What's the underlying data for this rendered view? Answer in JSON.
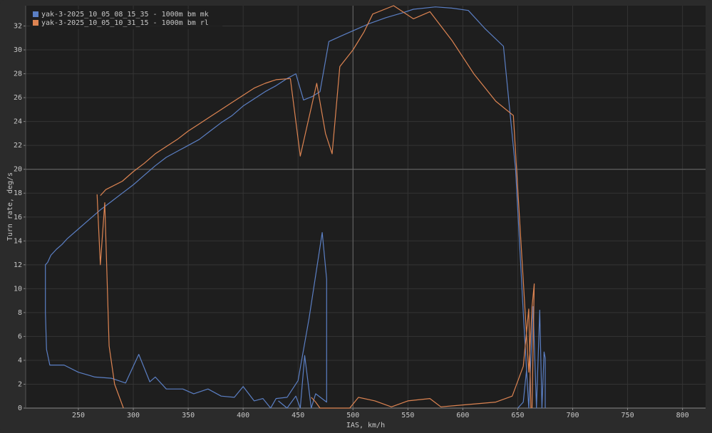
{
  "chart_data": {
    "type": "line",
    "xlabel": "IAS, km/h",
    "ylabel": "Turn rate, deg/s",
    "xlim": [
      202,
      821
    ],
    "ylim": [
      0,
      33.7
    ],
    "xticks": [
      250,
      300,
      350,
      400,
      450,
      500,
      550,
      600,
      650,
      700,
      750,
      800
    ],
    "yticks": [
      0,
      2,
      4,
      6,
      8,
      10,
      12,
      14,
      16,
      18,
      20,
      22,
      24,
      26,
      28,
      30,
      32
    ],
    "grid": true,
    "legend": "top-left",
    "crosshair": {
      "x": 500,
      "y": 20
    },
    "series": [
      {
        "name": "yak-3-2025_10_05_08_15_35 - 1000m bm mk",
        "color": "#5b7fc4",
        "x": [
          221,
          220,
          220,
          222,
          225,
          230,
          235,
          240,
          250,
          260,
          270,
          280,
          290,
          300,
          310,
          320,
          330,
          340,
          350,
          360,
          370,
          380,
          390,
          400,
          410,
          420,
          430,
          440,
          448,
          455,
          463,
          470,
          478,
          490,
          500,
          515,
          530,
          545,
          555,
          575,
          590,
          605,
          620,
          637,
          648,
          655,
          660,
          null,
          221,
          224,
          237,
          250,
          265,
          280,
          293,
          305,
          315,
          320,
          330,
          345,
          355,
          368,
          380,
          392,
          400,
          410,
          418,
          425,
          430,
          440,
          450,
          460,
          472,
          476,
          476,
          466,
          462,
          456,
          452,
          448,
          440,
          432,
          null,
          650,
          655,
          658,
          660,
          664,
          667,
          670,
          672,
          674,
          675,
          675
        ],
        "values": [
          4.9,
          8,
          12,
          12.2,
          12.8,
          13.3,
          13.7,
          14.2,
          15.0,
          15.8,
          16.6,
          17.3,
          18.0,
          18.7,
          19.5,
          20.3,
          21.0,
          21.5,
          22.0,
          22.5,
          23.2,
          23.9,
          24.5,
          25.3,
          25.9,
          26.5,
          27.0,
          27.6,
          28.0,
          25.8,
          26.1,
          26.5,
          30.7,
          31.2,
          31.6,
          32.2,
          32.7,
          33.1,
          33.4,
          33.6,
          33.5,
          33.3,
          31.8,
          30.3,
          20,
          8,
          0,
          null,
          4.9,
          3.6,
          3.6,
          3.0,
          2.6,
          2.5,
          2.1,
          4.5,
          2.2,
          2.6,
          1.6,
          1.6,
          1.2,
          1.6,
          1.0,
          0.9,
          1.8,
          0.6,
          0.8,
          0,
          0.8,
          0.9,
          2.3,
          7.5,
          14.7,
          10.8,
          0.5,
          1.2,
          0,
          4.4,
          0,
          1.0,
          0,
          0.6,
          null,
          0,
          0.5,
          3.2,
          0,
          8.5,
          0,
          8.2,
          0,
          4.7,
          4.2,
          0
        ]
      },
      {
        "name": "yak-3-2025_10_05_10_31_15 - 1000m bm rl",
        "color": "#dd8452",
        "x": [
          267,
          270,
          274,
          278,
          283,
          291,
          null,
          270,
          275,
          290,
          300,
          310,
          320,
          330,
          340,
          350,
          360,
          370,
          380,
          390,
          400,
          410,
          420,
          430,
          443,
          452,
          467,
          475,
          481,
          488,
          500,
          510,
          518,
          537,
          555,
          570,
          590,
          610,
          630,
          646,
          660,
          663,
          665,
          663,
          null,
          462,
          466,
          470,
          497,
          505,
          520,
          535,
          550,
          570,
          580,
          630,
          645,
          655,
          660,
          662
        ],
        "values": [
          17.9,
          12.0,
          17.2,
          5.2,
          2.0,
          0,
          null,
          17.8,
          18.3,
          19.0,
          19.8,
          20.5,
          21.3,
          21.9,
          22.5,
          23.2,
          23.8,
          24.4,
          25.0,
          25.6,
          26.2,
          26.8,
          27.2,
          27.5,
          27.6,
          21.1,
          27.2,
          23.0,
          21.3,
          28.6,
          30.0,
          31.5,
          33.0,
          33.7,
          32.6,
          33.2,
          30.8,
          28.0,
          25.7,
          24.5,
          3.0,
          8.5,
          10.4,
          0,
          null,
          0.9,
          0.5,
          0,
          0,
          0.9,
          0.6,
          0.1,
          0.6,
          0.8,
          0.1,
          0.5,
          1.0,
          3.5,
          8.3,
          0
        ]
      }
    ]
  }
}
